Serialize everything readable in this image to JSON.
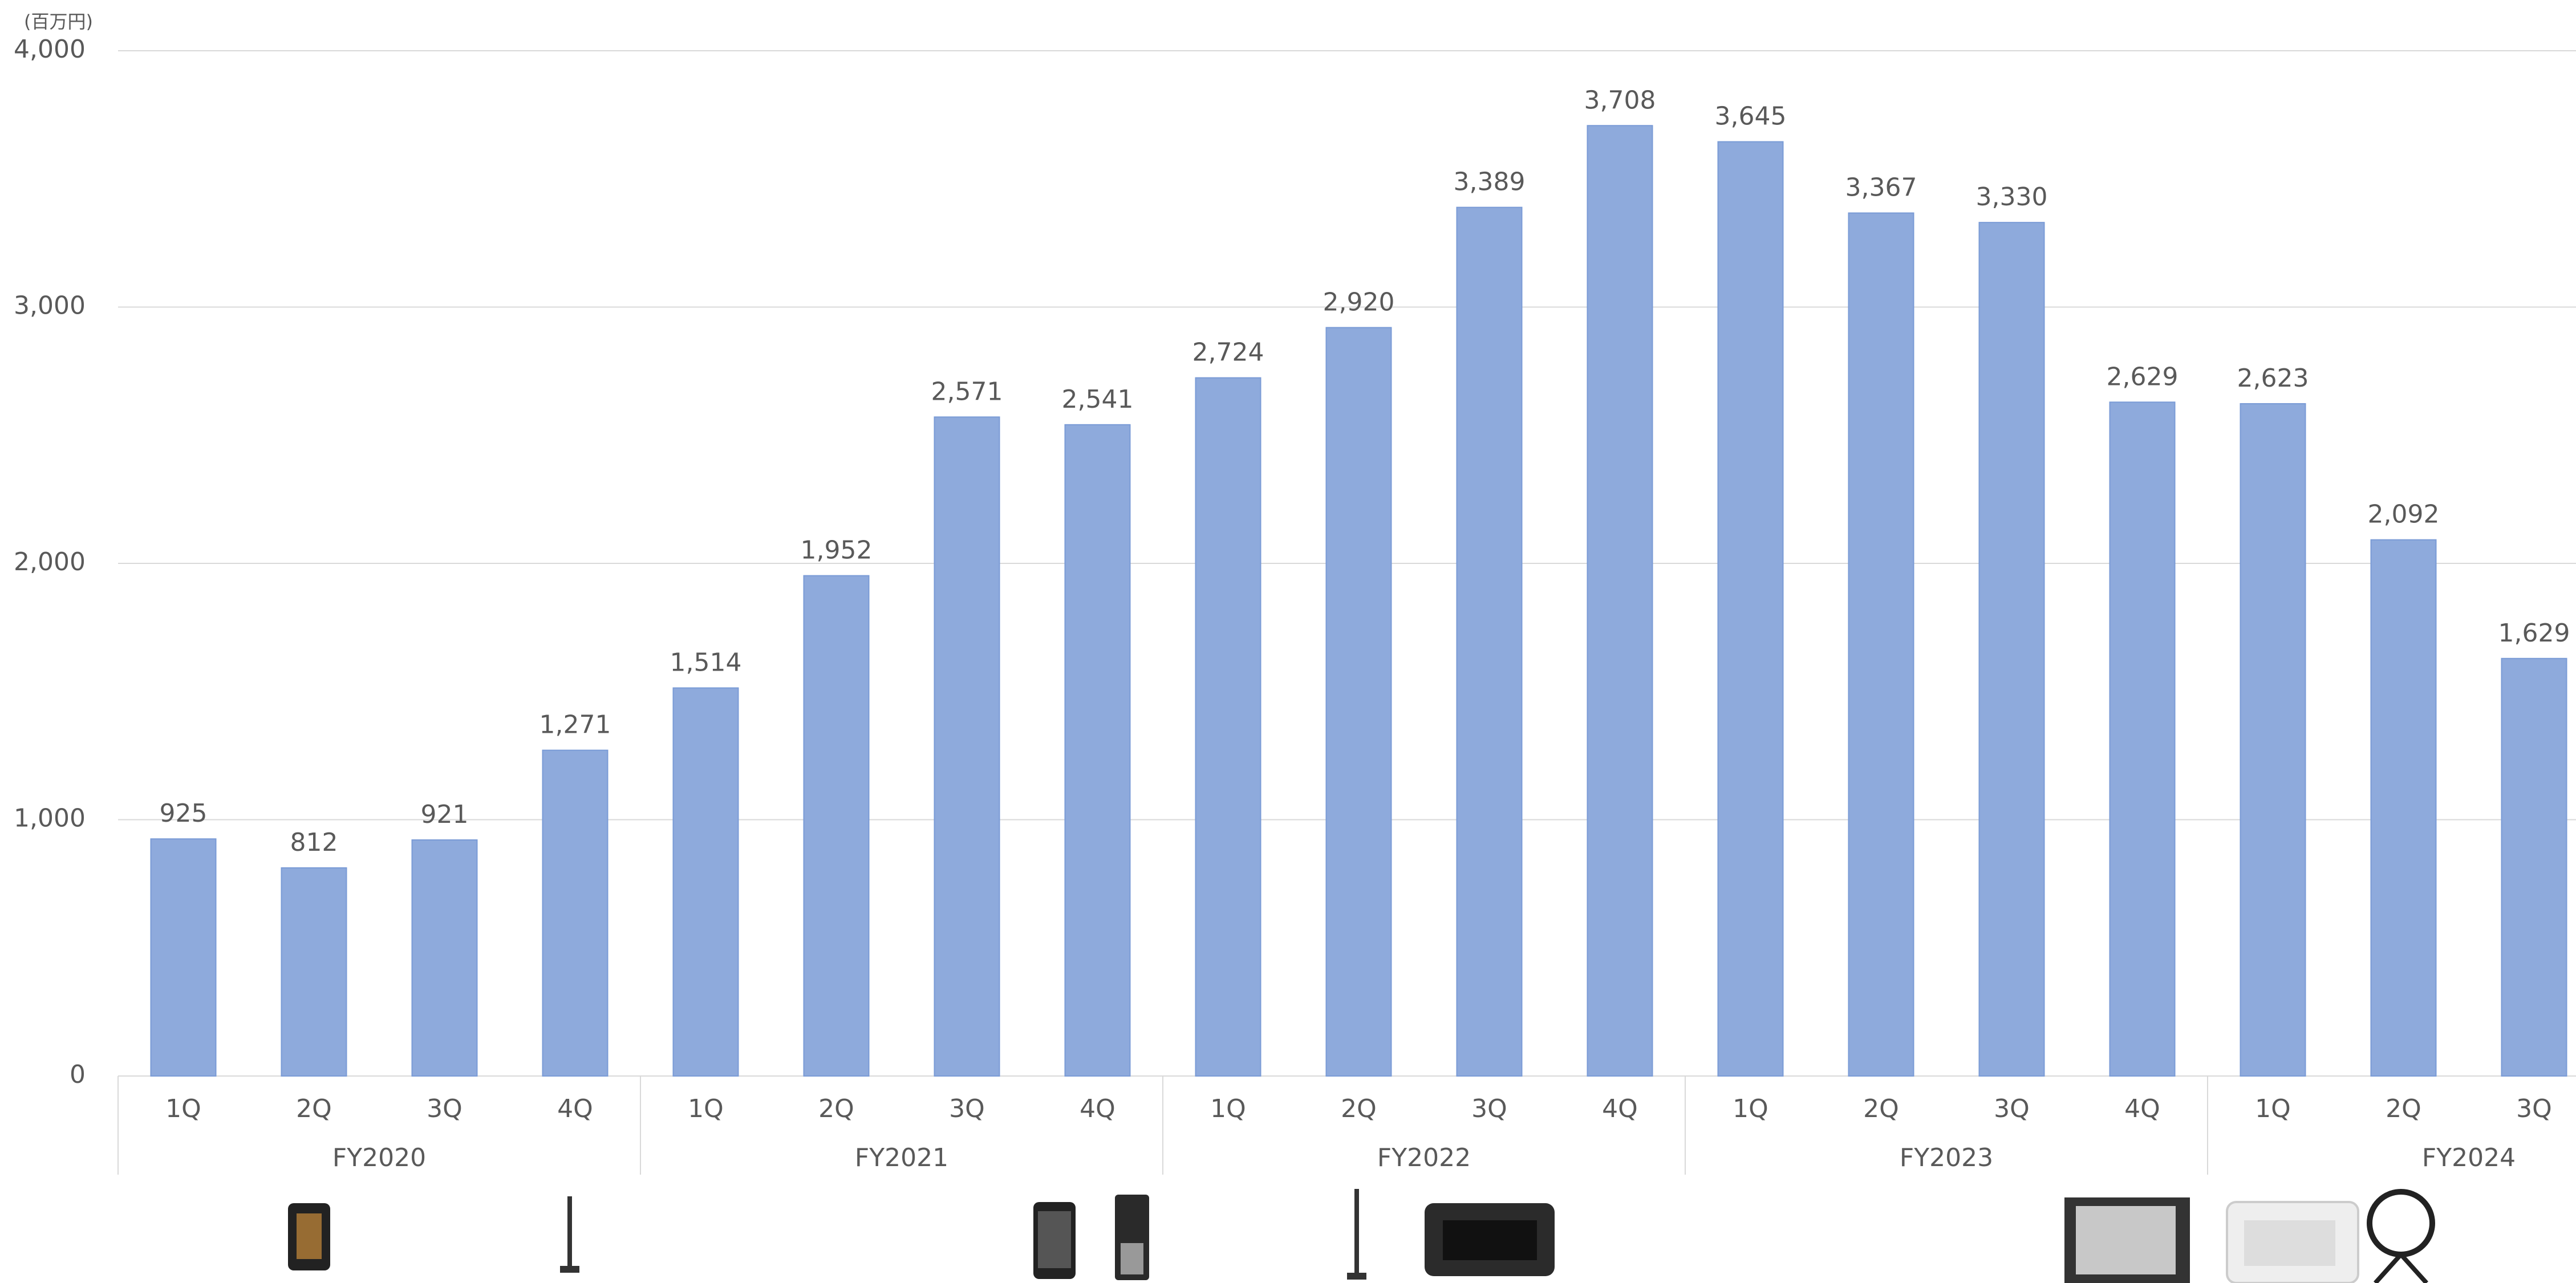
{
  "chart_data": {
    "type": "bar",
    "unit_label": "(百万円)",
    "color": "#8eaadc",
    "ylim": [
      0,
      4000
    ],
    "yticks": [
      0,
      {
        "value": 1000,
        "label": "1,000"
      },
      {
        "value": 2000,
        "label": "2,000"
      },
      {
        "value": 3000,
        "label": "3,000"
      },
      {
        "value": 4000,
        "label": "4,000"
      }
    ],
    "grid": true,
    "groups": [
      {
        "label": "FY2020",
        "categories": [
          "1Q",
          "2Q",
          "3Q",
          "4Q"
        ],
        "values": [
          925,
          812,
          921,
          1271
        ],
        "value_labels": [
          "925",
          "812",
          "921",
          "1,271"
        ]
      },
      {
        "label": "FY2021",
        "categories": [
          "1Q",
          "2Q",
          "3Q",
          "4Q"
        ],
        "values": [
          1514,
          1952,
          2571,
          2541
        ],
        "value_labels": [
          "1,514",
          "1,952",
          "2,571",
          "2,541"
        ]
      },
      {
        "label": "FY2022",
        "categories": [
          "1Q",
          "2Q",
          "3Q",
          "4Q"
        ],
        "values": [
          2724,
          2920,
          3389,
          3708
        ],
        "value_labels": [
          "2,724",
          "2,920",
          "3,389",
          "3,708"
        ]
      },
      {
        "label": "FY2023",
        "categories": [
          "1Q",
          "2Q",
          "3Q",
          "4Q"
        ],
        "values": [
          3645,
          3367,
          3330,
          2629
        ],
        "value_labels": [
          "3,645",
          "3,367",
          "3,330",
          "2,629"
        ]
      },
      {
        "label": "FY2024",
        "categories": [
          "1Q",
          "2Q",
          "3Q"
        ],
        "values": [
          2623,
          2092,
          1629
        ],
        "value_labels": [
          "2,623",
          "2,092",
          "1,629"
        ]
      }
    ]
  }
}
